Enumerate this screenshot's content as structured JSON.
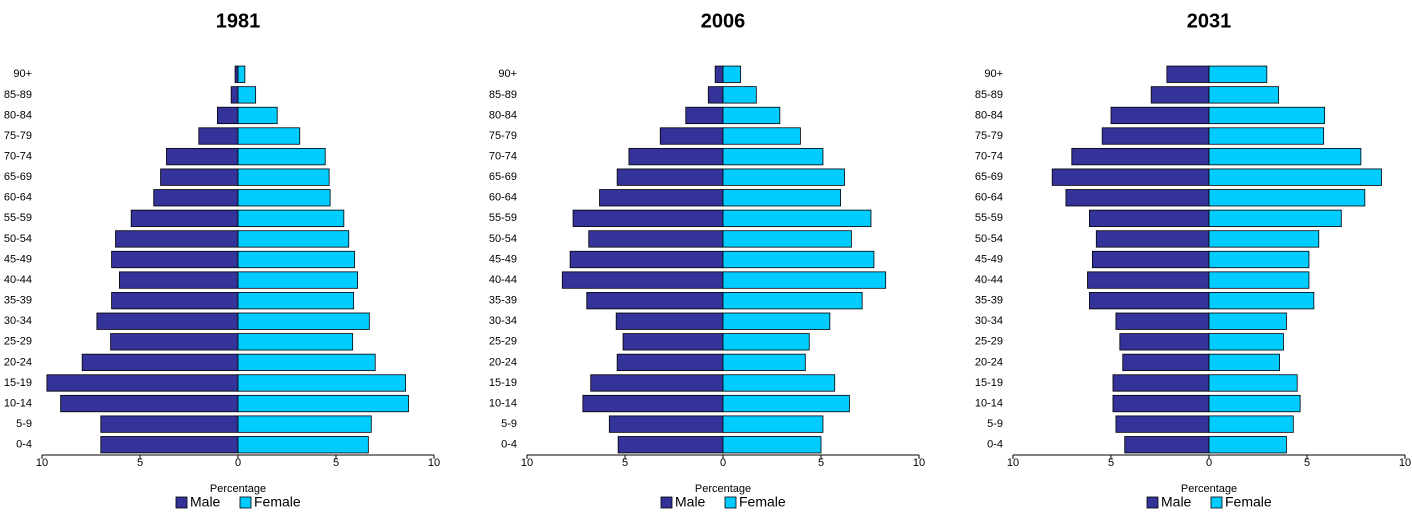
{
  "chart_data": [
    {
      "type": "pyramid",
      "title": "1981",
      "xlabel": "Percentage",
      "categories": [
        "0-4",
        "5-9",
        "10-14",
        "15-19",
        "20-24",
        "25-29",
        "30-34",
        "35-39",
        "40-44",
        "45-49",
        "50-54",
        "55-59",
        "60-64",
        "65-69",
        "70-74",
        "75-79",
        "80-84",
        "85-89",
        "90+"
      ],
      "series": [
        {
          "name": "Male",
          "color": "#333399",
          "values": [
            7.0,
            7.0,
            9.05,
            9.75,
            7.95,
            6.5,
            7.2,
            6.45,
            6.05,
            6.45,
            6.25,
            5.45,
            4.3,
            3.95,
            3.65,
            2.0,
            1.05,
            0.35,
            0.15
          ]
        },
        {
          "name": "Female",
          "color": "#00ccff",
          "values": [
            6.65,
            6.8,
            8.7,
            8.55,
            7.0,
            5.85,
            6.7,
            5.9,
            6.1,
            5.95,
            5.65,
            5.4,
            4.7,
            4.65,
            4.45,
            3.15,
            2.0,
            0.9,
            0.35
          ]
        }
      ],
      "xlim": [
        -10,
        10
      ],
      "xticks": [
        {
          "value": -10,
          "label": "10"
        },
        {
          "value": -5,
          "label": "5"
        },
        0,
        5,
        10
      ]
    },
    {
      "type": "pyramid",
      "title": "2006",
      "xlabel": "Percentage",
      "categories": [
        "0-4",
        "5-9",
        "10-14",
        "15-19",
        "20-24",
        "25-29",
        "30-34",
        "35-39",
        "40-44",
        "45-49",
        "50-54",
        "55-59",
        "60-64",
        "65-69",
        "70-74",
        "75-79",
        "80-84",
        "85-89",
        "90+"
      ],
      "series": [
        {
          "name": "Male",
          "color": "#333399",
          "values": [
            5.35,
            5.8,
            7.15,
            6.75,
            5.4,
            5.1,
            5.45,
            6.95,
            8.2,
            7.8,
            6.85,
            7.65,
            6.3,
            5.4,
            4.8,
            3.2,
            1.9,
            0.75,
            0.4
          ]
        },
        {
          "name": "Female",
          "color": "#00ccff",
          "values": [
            5.0,
            5.1,
            6.45,
            5.7,
            4.2,
            4.4,
            5.45,
            7.1,
            8.3,
            7.7,
            6.55,
            7.55,
            6.0,
            6.2,
            5.1,
            3.95,
            2.9,
            1.7,
            0.9
          ]
        }
      ],
      "xlim": [
        -10,
        10
      ],
      "xticks": [
        {
          "value": -10,
          "label": "10"
        },
        {
          "value": -5,
          "label": "5"
        },
        0,
        5,
        10
      ]
    },
    {
      "type": "pyramid",
      "title": "2031",
      "xlabel": "Percentage",
      "categories": [
        "0-4",
        "5-9",
        "10-14",
        "15-19",
        "20-24",
        "25-29",
        "30-34",
        "35-39",
        "40-44",
        "45-49",
        "50-54",
        "55-59",
        "60-64",
        "65-69",
        "70-74",
        "75-79",
        "80-84",
        "85-89",
        "90+"
      ],
      "series": [
        {
          "name": "Male",
          "color": "#333399",
          "values": [
            4.3,
            4.75,
            4.9,
            4.9,
            4.4,
            4.55,
            4.75,
            6.1,
            6.2,
            5.95,
            5.75,
            6.1,
            7.3,
            8.0,
            7.0,
            5.45,
            5.0,
            2.95,
            2.15
          ]
        },
        {
          "name": "Female",
          "color": "#00ccff",
          "values": [
            3.95,
            4.3,
            4.65,
            4.5,
            3.6,
            3.8,
            3.95,
            5.35,
            5.1,
            5.1,
            5.6,
            6.75,
            7.95,
            8.8,
            7.75,
            5.85,
            5.9,
            3.55,
            2.95
          ]
        }
      ],
      "xlim": [
        -10,
        10
      ],
      "xticks": [
        {
          "value": -10,
          "label": "10"
        },
        {
          "value": -5,
          "label": "5"
        },
        0,
        5,
        10
      ]
    }
  ]
}
